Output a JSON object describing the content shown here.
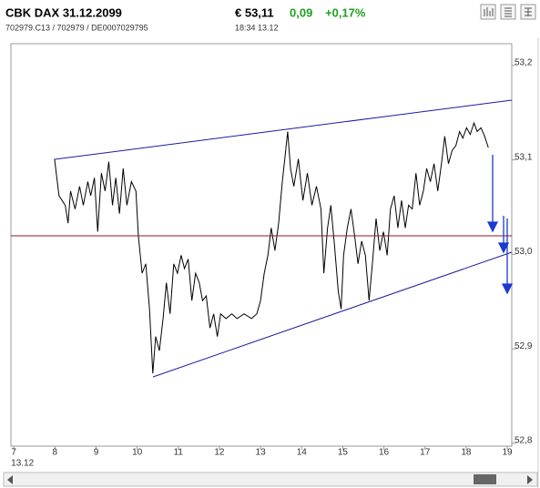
{
  "header": {
    "price": "€ 53,11",
    "change": "0,09",
    "change_pct": "+0,17%",
    "ids": "702979.C13 / 702979 / DE0007029795",
    "time": "18:34 13.12"
  },
  "chart_data": {
    "type": "line",
    "title": "CBK DAX 31.12.2099",
    "date_label": "13.12",
    "color": "#000000",
    "x": [
      7.99,
      8.1,
      8.25,
      8.32,
      8.38,
      8.49,
      8.6,
      8.69,
      8.8,
      8.87,
      8.96,
      9.04,
      9.13,
      9.22,
      9.31,
      9.4,
      9.48,
      9.57,
      9.66,
      9.75,
      9.86,
      9.97,
      10.03,
      10.12,
      10.21,
      10.3,
      10.38,
      10.45,
      10.54,
      10.63,
      10.71,
      10.8,
      10.89,
      10.98,
      11.07,
      11.15,
      11.24,
      11.33,
      11.42,
      11.51,
      11.59,
      11.68,
      11.77,
      11.86,
      11.95,
      12.03,
      12.16,
      12.3,
      12.43,
      12.6,
      12.78,
      12.91,
      13.0,
      13.09,
      13.18,
      13.26,
      13.35,
      13.44,
      13.53,
      13.59,
      13.66,
      13.73,
      13.81,
      13.92,
      14.03,
      14.14,
      14.25,
      14.36,
      14.47,
      14.54,
      14.63,
      14.71,
      14.8,
      14.89,
      14.96,
      15.02,
      15.11,
      15.2,
      15.29,
      15.37,
      15.46,
      15.55,
      15.64,
      15.73,
      15.81,
      15.9,
      15.99,
      16.08,
      16.16,
      16.25,
      16.34,
      16.43,
      16.52,
      16.6,
      16.69,
      16.78,
      16.87,
      16.96,
      17.04,
      17.13,
      17.22,
      17.31,
      17.4,
      17.48,
      17.57,
      17.66,
      17.75,
      17.84,
      17.92,
      18.01,
      18.1,
      18.19,
      18.27,
      18.36,
      18.45,
      18.54
    ],
    "values": [
      53.101,
      53.062,
      53.052,
      53.033,
      53.067,
      53.048,
      53.072,
      53.052,
      53.077,
      53.062,
      53.081,
      53.024,
      53.086,
      53.067,
      53.098,
      53.052,
      53.081,
      53.043,
      53.091,
      53.052,
      53.077,
      53.067,
      53.019,
      52.98,
      52.99,
      52.942,
      52.874,
      52.913,
      52.898,
      52.932,
      52.97,
      52.937,
      52.99,
      52.98,
      52.999,
      52.985,
      52.995,
      52.951,
      52.98,
      52.97,
      52.951,
      52.956,
      52.922,
      52.937,
      52.913,
      52.937,
      52.932,
      52.937,
      52.932,
      52.937,
      52.932,
      52.937,
      52.951,
      52.98,
      52.999,
      53.028,
      53.004,
      53.033,
      53.077,
      53.101,
      53.13,
      53.091,
      53.072,
      53.101,
      53.057,
      53.086,
      53.052,
      53.072,
      53.048,
      52.98,
      53.028,
      53.052,
      53.009,
      52.961,
      52.942,
      52.999,
      53.028,
      53.048,
      53.019,
      52.99,
      53.014,
      52.999,
      52.951,
      52.995,
      53.038,
      53.004,
      53.024,
      52.999,
      53.048,
      53.062,
      53.028,
      53.057,
      53.028,
      53.052,
      53.048,
      53.086,
      53.052,
      53.067,
      53.091,
      53.077,
      53.096,
      53.067,
      53.096,
      53.125,
      53.096,
      53.11,
      53.115,
      53.13,
      53.123,
      53.134,
      53.127,
      53.139,
      53.13,
      53.134,
      53.125,
      53.113
    ],
    "xlim": [
      6.93,
      19.11
    ],
    "xticks": [
      7,
      8,
      9,
      10,
      11,
      12,
      13,
      14,
      15,
      16,
      17,
      18,
      19
    ],
    "ylim": [
      52.797,
      53.223
    ],
    "yticks": [
      {
        "value": 52.8,
        "label": "52,8"
      },
      {
        "value": 52.9,
        "label": "52,9"
      },
      {
        "value": 53.0,
        "label": "53,0"
      },
      {
        "value": 53.1,
        "label": "53,1"
      },
      {
        "value": 53.2,
        "label": "53,2"
      }
    ]
  }
}
